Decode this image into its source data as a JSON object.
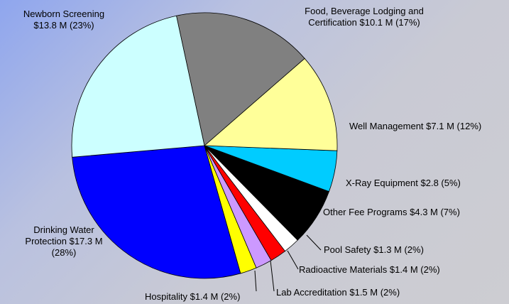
{
  "chart_data": {
    "type": "pie",
    "categories": [
      "Newborn Screening",
      "Food, Beverage Lodging and Certification",
      "Well Management",
      "X-Ray Equipment",
      "Other Fee Programs",
      "Pool Safety",
      "Radioactive Materials",
      "Lab Accreditation",
      "Hospitality",
      "Drinking Water Protection"
    ],
    "values": [
      23,
      17,
      12,
      5,
      7,
      2,
      2,
      2,
      2,
      28
    ],
    "value_labels": [
      "$13.8 M (23%)",
      "$10.1 M (17%)",
      "$7.1 M (12%)",
      "$2.8 (5%)",
      "$4.3 M (7%)",
      "$1.3 M (2%)",
      "$1.4 M (2%)",
      "$1.5 M (2%)",
      "$1.4 M (2%)",
      "$17.3 M (28%)"
    ],
    "colors": [
      "#ccffff",
      "#808080",
      "#ffff99",
      "#00ccff",
      "#000000",
      "#ffffff",
      "#ff0000",
      "#cc99ff",
      "#ffff00",
      "#0000ff"
    ]
  }
}
